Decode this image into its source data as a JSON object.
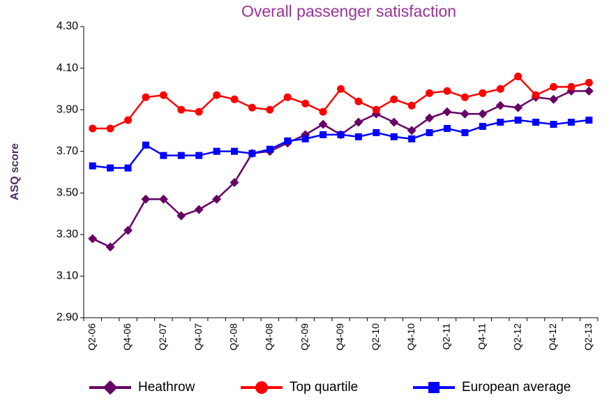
{
  "chart_data": {
    "type": "line",
    "title": "Overall passenger satisfaction",
    "y_label": "ASQ score",
    "categories": [
      "Q2-06",
      null,
      "Q4-06",
      null,
      "Q2-07",
      null,
      "Q4-07",
      null,
      "Q2-08",
      null,
      "Q4-08",
      null,
      "Q2-09",
      null,
      "Q4-09",
      null,
      "Q2-10",
      null,
      "Q4-10",
      null,
      "Q2-11",
      null,
      "Q4-11",
      null,
      "Q2-12",
      null,
      "Q4-12",
      null,
      "Q2-13"
    ],
    "series": [
      {
        "name": "Heathrow",
        "color": "#660066",
        "marker": "diamond",
        "values": [
          3.28,
          3.24,
          3.32,
          3.47,
          3.47,
          3.39,
          3.42,
          3.47,
          3.55,
          3.69,
          3.7,
          3.74,
          3.78,
          3.83,
          3.78,
          3.84,
          3.88,
          3.84,
          3.8,
          3.86,
          3.89,
          3.88,
          3.88,
          3.92,
          3.91,
          3.96,
          3.95,
          3.99,
          3.99
        ]
      },
      {
        "name": "Top quartile",
        "color": "#ff0000",
        "marker": "circle",
        "values": [
          3.81,
          3.81,
          3.85,
          3.96,
          3.97,
          3.9,
          3.89,
          3.97,
          3.95,
          3.91,
          3.9,
          3.96,
          3.93,
          3.89,
          4.0,
          3.94,
          3.9,
          3.95,
          3.92,
          3.98,
          3.99,
          3.96,
          3.98,
          4.0,
          4.06,
          3.97,
          4.01,
          4.01,
          4.03
        ]
      },
      {
        "name": "European average",
        "color": "#0000ff",
        "marker": "square",
        "values": [
          3.63,
          3.62,
          3.62,
          3.73,
          3.68,
          3.68,
          3.68,
          3.7,
          3.7,
          3.69,
          3.71,
          3.75,
          3.76,
          3.78,
          3.78,
          3.77,
          3.79,
          3.77,
          3.76,
          3.79,
          3.81,
          3.79,
          3.82,
          3.84,
          3.85,
          3.84,
          3.83,
          3.84,
          3.85
        ]
      }
    ],
    "ylim": [
      2.9,
      4.3
    ],
    "yticks": [
      {
        "value": 2.9,
        "label": "2.90"
      },
      {
        "value": 3.1,
        "label": "3.10"
      },
      {
        "value": 3.3,
        "label": "3.30"
      },
      {
        "value": 3.5,
        "label": "3.50"
      },
      {
        "value": 3.7,
        "label": "3.70"
      },
      {
        "value": 3.9,
        "label": "3.90"
      },
      {
        "value": 4.1,
        "label": "4.10"
      },
      {
        "value": 4.3,
        "label": "4.30"
      }
    ],
    "grid": false,
    "legend": "bottom"
  }
}
